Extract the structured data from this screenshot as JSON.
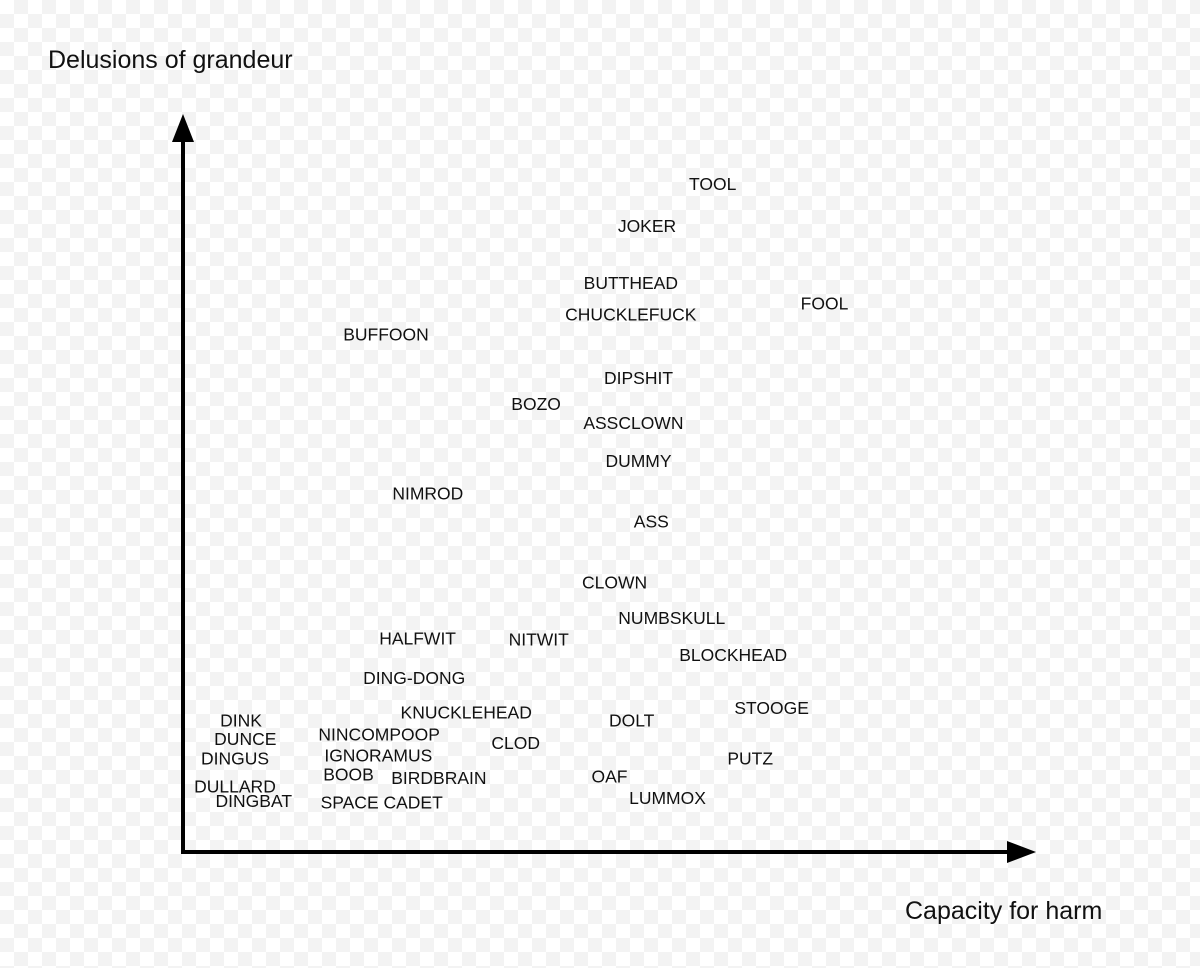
{
  "chart_data": {
    "type": "scatter",
    "xlabel": "Capacity for harm",
    "ylabel": "Delusions of grandeur",
    "xlim": [
      0,
      100
    ],
    "ylim": [
      0,
      100
    ],
    "grid": false,
    "legend": "none",
    "points": [
      {
        "label": "TOOL",
        "x": 62.1,
        "y": 90.5
      },
      {
        "label": "JOKER",
        "x": 54.4,
        "y": 84.8
      },
      {
        "label": "BUTTHEAD",
        "x": 52.5,
        "y": 77.1
      },
      {
        "label": "FOOL",
        "x": 75.2,
        "y": 74.3
      },
      {
        "label": "CHUCKLEFUCK",
        "x": 52.5,
        "y": 72.8
      },
      {
        "label": "BUFFOON",
        "x": 23.8,
        "y": 70.1
      },
      {
        "label": "DIPSHIT",
        "x": 53.4,
        "y": 64.2
      },
      {
        "label": "BOZO",
        "x": 41.4,
        "y": 60.7
      },
      {
        "label": "ASSCLOWN",
        "x": 52.8,
        "y": 58.1
      },
      {
        "label": "DUMMY",
        "x": 53.4,
        "y": 53.0
      },
      {
        "label": "NIMROD",
        "x": 28.7,
        "y": 48.6
      },
      {
        "label": "ASS",
        "x": 54.9,
        "y": 44.8
      },
      {
        "label": "CLOWN",
        "x": 50.6,
        "y": 36.5
      },
      {
        "label": "NUMBSKULL",
        "x": 57.3,
        "y": 31.7
      },
      {
        "label": "HALFWIT",
        "x": 27.5,
        "y": 28.9
      },
      {
        "label": "NITWIT",
        "x": 41.7,
        "y": 28.8
      },
      {
        "label": "BLOCKHEAD",
        "x": 64.5,
        "y": 26.7
      },
      {
        "label": "DING-DONG",
        "x": 27.1,
        "y": 23.6
      },
      {
        "label": "KNUCKLEHEAD",
        "x": 33.2,
        "y": 18.9
      },
      {
        "label": "STOOGE",
        "x": 69.0,
        "y": 19.5
      },
      {
        "label": "DOLT",
        "x": 52.6,
        "y": 17.8
      },
      {
        "label": "DINK",
        "x": 6.8,
        "y": 17.8
      },
      {
        "label": "DUNCE",
        "x": 7.3,
        "y": 15.3
      },
      {
        "label": "NINCOMPOOP",
        "x": 23.0,
        "y": 15.9
      },
      {
        "label": "CLOD",
        "x": 39.0,
        "y": 14.8
      },
      {
        "label": "IGNORAMUS",
        "x": 22.9,
        "y": 13.1
      },
      {
        "label": "PUTZ",
        "x": 66.5,
        "y": 12.7
      },
      {
        "label": "DINGUS",
        "x": 6.1,
        "y": 12.7
      },
      {
        "label": "BOOB",
        "x": 19.4,
        "y": 10.5
      },
      {
        "label": "BIRDBRAIN",
        "x": 30.0,
        "y": 10.0
      },
      {
        "label": "OAF",
        "x": 50.0,
        "y": 10.2
      },
      {
        "label": "DULLARD",
        "x": 6.1,
        "y": 8.9
      },
      {
        "label": "DINGBAT",
        "x": 8.3,
        "y": 6.9
      },
      {
        "label": "SPACE CADET",
        "x": 23.3,
        "y": 6.7
      },
      {
        "label": "LUMMOX",
        "x": 56.8,
        "y": 7.3
      }
    ]
  }
}
